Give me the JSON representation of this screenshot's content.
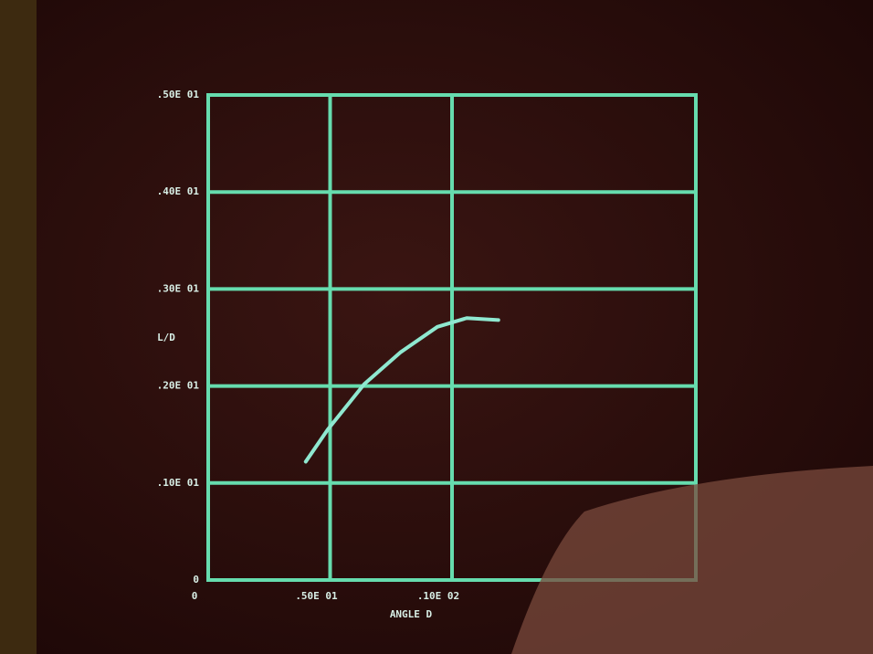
{
  "chart_data": {
    "type": "line",
    "x_label": "ANGLE D",
    "y_label": "L/D",
    "xlim": [
      0,
      20
    ],
    "ylim": [
      0,
      5
    ],
    "xticks": [
      0,
      {
        "value": 5,
        "label": ".50E 01"
      },
      {
        "value": 10,
        "label": ".10E 02"
      }
    ],
    "yticks": [
      0,
      {
        "value": 1,
        "label": ".10E 01"
      },
      {
        "value": 2,
        "label": ".20E 01"
      },
      {
        "value": 3,
        "label": ".30E 01"
      },
      {
        "value": 4,
        "label": ".40E 01"
      },
      {
        "value": 5,
        "label": ".50E 01"
      }
    ],
    "grid": true,
    "series": [
      {
        "color": "#8fe8d0",
        "x": [
          4.0,
          4.9,
          6.4,
          7.9,
          9.4,
          10.6,
          11.9
        ],
        "values": [
          1.22,
          1.55,
          2.02,
          2.35,
          2.61,
          2.7,
          2.68
        ]
      }
    ]
  }
}
